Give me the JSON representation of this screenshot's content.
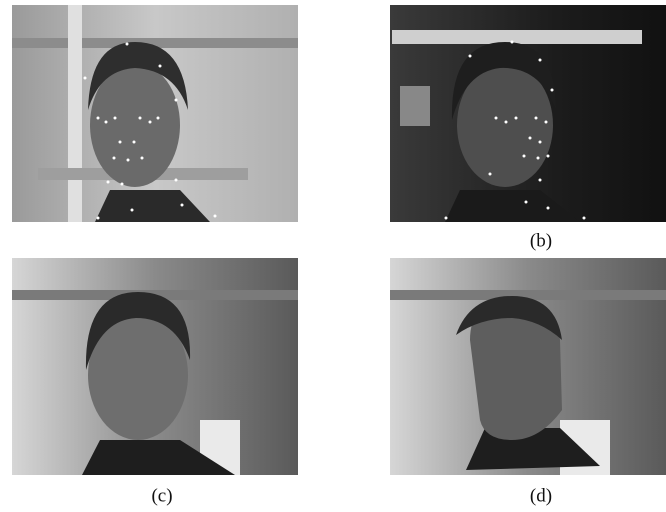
{
  "figure": {
    "panel_labels": [
      "(b)",
      "(c)",
      "(d)"
    ]
  }
}
